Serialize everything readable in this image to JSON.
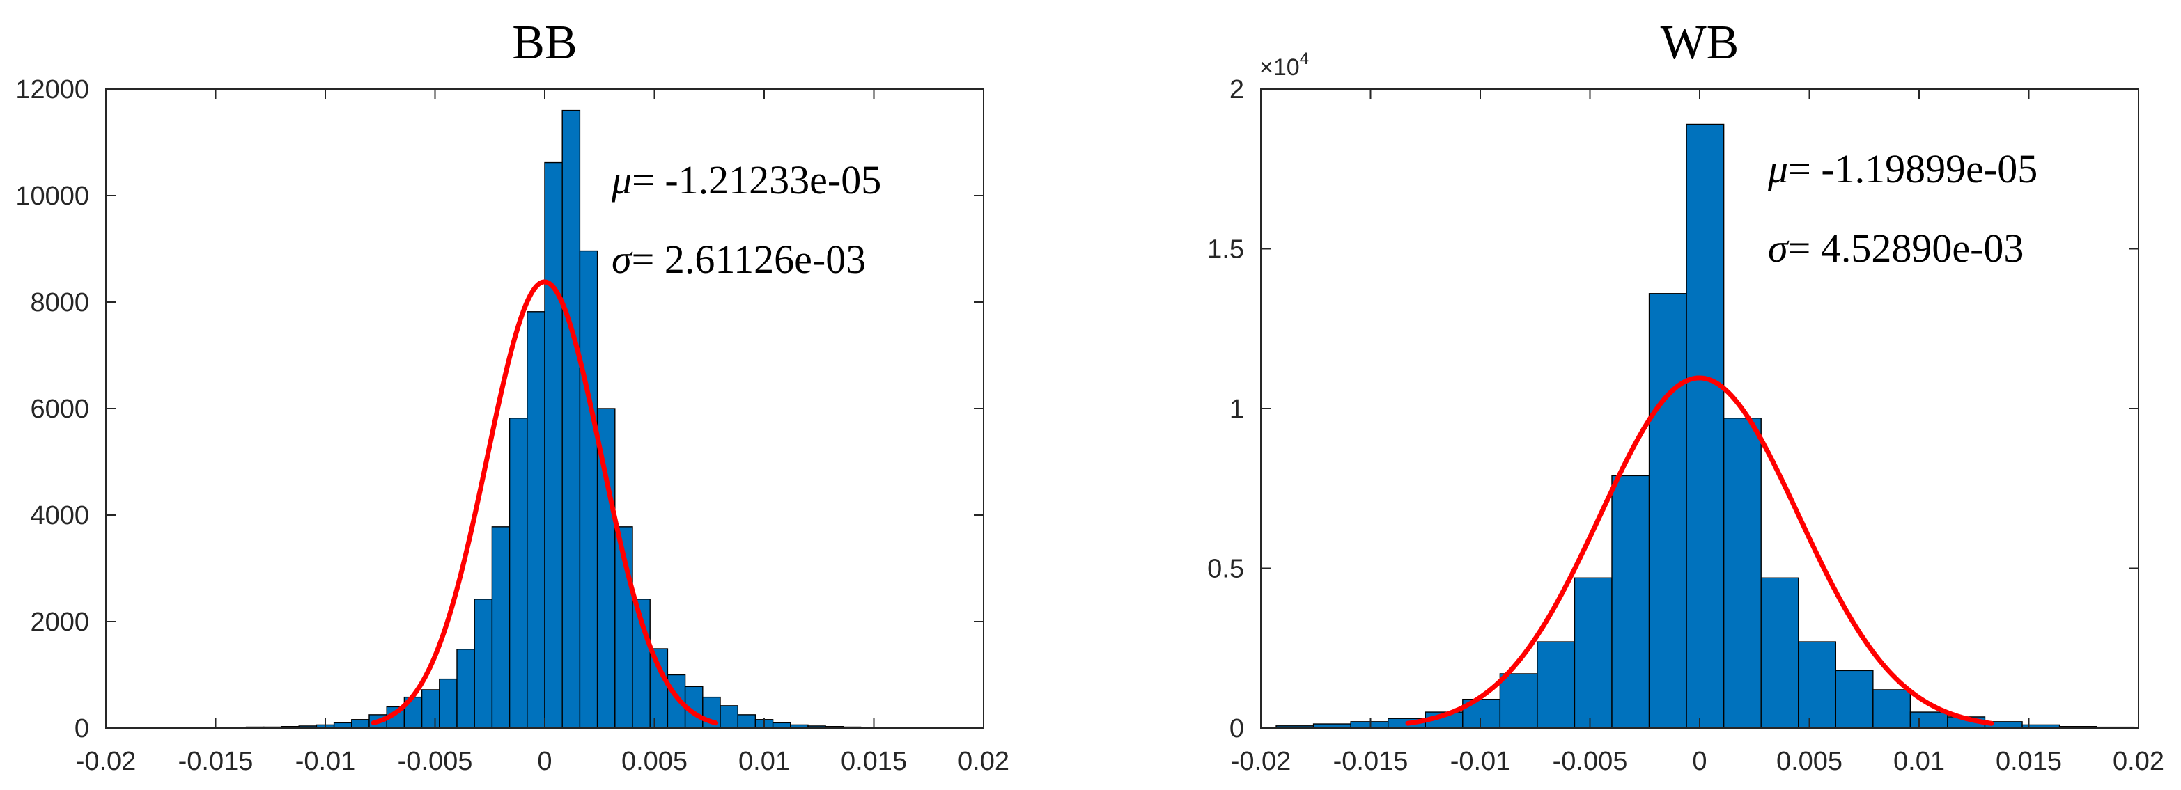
{
  "chart_data": [
    {
      "type": "bar",
      "subtype": "histogram",
      "title": "BB",
      "xlabel": "",
      "ylabel": "",
      "xlim": [
        -0.02,
        0.02
      ],
      "ylim": [
        0,
        12000
      ],
      "xticks": [
        "-0.02",
        "-0.015",
        "-0.01",
        "-0.005",
        "0",
        "0.005",
        "0.01",
        "0.015",
        "0.02"
      ],
      "yticks": [
        "0",
        "2000",
        "4000",
        "6000",
        "8000",
        "10000",
        "12000"
      ],
      "y_multiplier": "",
      "bin_edges": [
        -0.0176,
        -0.0168,
        -0.016,
        -0.0152,
        -0.0144,
        -0.0136,
        -0.0128,
        -0.012,
        -0.0112,
        -0.0104,
        -0.0096,
        -0.0088,
        -0.008,
        -0.0072,
        -0.0064,
        -0.0056,
        -0.0048,
        -0.004,
        -0.0032,
        -0.0024,
        -0.0016,
        -0.0008,
        0.0,
        0.0008,
        0.0016,
        0.0024,
        0.0032,
        0.004,
        0.0048,
        0.0056,
        0.0064,
        0.0072,
        0.008,
        0.0088,
        0.0096,
        0.0104,
        0.0112,
        0.012,
        0.0128,
        0.0136,
        0.0144,
        0.0152,
        0.016,
        0.0168,
        0.0176
      ],
      "values": [
        10,
        10,
        10,
        10,
        10,
        20,
        20,
        30,
        40,
        60,
        100,
        160,
        250,
        400,
        580,
        720,
        920,
        1480,
        2420,
        3780,
        5820,
        7820,
        10620,
        11600,
        8960,
        6000,
        3780,
        2420,
        1490,
        1000,
        780,
        580,
        420,
        250,
        160,
        100,
        60,
        40,
        30,
        20,
        15,
        10,
        10,
        10
      ],
      "fit": {
        "type": "normal",
        "mu": -1.21233e-05,
        "sigma": 0.00261126,
        "peak": 8380,
        "xrange": [
          -0.0078,
          0.0078
        ]
      },
      "colors": {
        "bar": "#0072BD",
        "fit": "#ff0000"
      },
      "annotations": [
        {
          "symbol": "μ",
          "text": "= -1.21233e-05"
        },
        {
          "symbol": "σ",
          "text": "= 2.61126e-03"
        }
      ]
    },
    {
      "type": "bar",
      "subtype": "histogram",
      "title": "WB",
      "xlabel": "",
      "ylabel": "",
      "xlim": [
        -0.02,
        0.02
      ],
      "ylim": [
        0,
        20000
      ],
      "xticks": [
        "-0.02",
        "-0.015",
        "-0.01",
        "-0.005",
        "0",
        "0.005",
        "0.01",
        "0.015",
        "0.02"
      ],
      "yticks": [
        "0",
        "0.5",
        "1",
        "1.5",
        "2"
      ],
      "y_multiplier": "×10",
      "y_multiplier_exp": "4",
      "bin_edges": [
        -0.0193,
        -0.0176,
        -0.0159,
        -0.0142,
        -0.0125,
        -0.0108,
        -0.0091,
        -0.0074,
        -0.0057,
        -0.004,
        -0.0023,
        -0.0006,
        0.0011,
        0.0028,
        0.0045,
        0.0062,
        0.0079,
        0.0096,
        0.0113,
        0.013,
        0.0147,
        0.0164,
        0.0181,
        0.0198
      ],
      "values": [
        70,
        130,
        200,
        300,
        500,
        900,
        1700,
        2700,
        4700,
        7900,
        13600,
        18900,
        9700,
        4700,
        2700,
        1800,
        1200,
        500,
        350,
        200,
        100,
        50,
        30
      ],
      "fit": {
        "type": "normal",
        "mu": -1.19899e-05,
        "sigma": 0.0045289,
        "peak": 10960,
        "xrange": [
          -0.0133,
          0.0133
        ]
      },
      "colors": {
        "bar": "#0072BD",
        "fit": "#ff0000"
      },
      "annotations": [
        {
          "symbol": "μ",
          "text": "= -1.19899e-05"
        },
        {
          "symbol": "σ",
          "text": "= 4.52890e-03"
        }
      ]
    }
  ]
}
